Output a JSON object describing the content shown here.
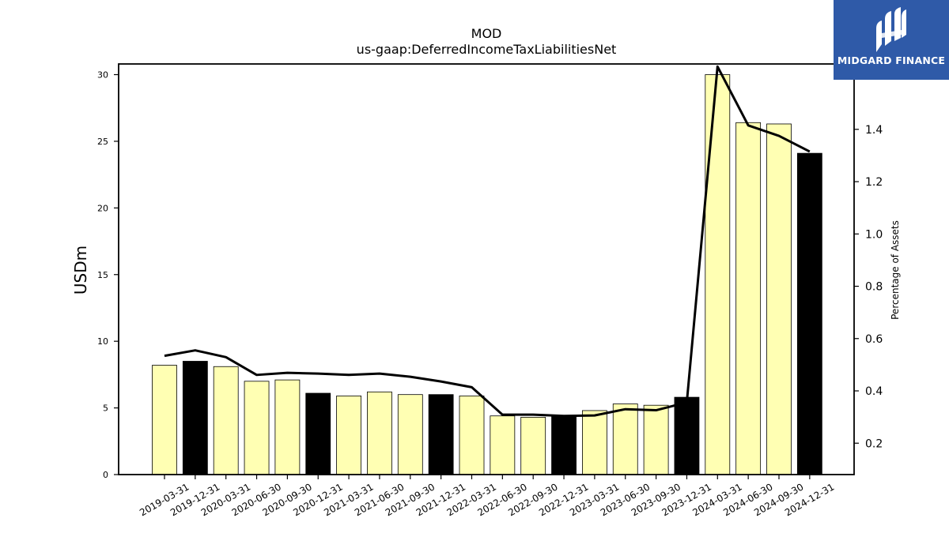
{
  "chart_data": {
    "type": "bar",
    "title": "MOD",
    "subtitle": "us-gaap:DeferredIncomeTaxLiabilitiesNet",
    "ylabel": "USDm",
    "y2label": "Percentage of Assets",
    "ylim": [
      0,
      30.8
    ],
    "y2lim": [
      0.08,
      1.65
    ],
    "yticks": [
      0,
      5,
      10,
      15,
      20,
      25,
      30
    ],
    "y2ticks": [
      0.2,
      0.4,
      0.6,
      0.8,
      1.0,
      1.2,
      1.4
    ],
    "categories": [
      "2019-03-31",
      "2019-12-31",
      "2020-03-31",
      "2020-06-30",
      "2020-09-30",
      "2020-12-31",
      "2021-03-31",
      "2021-06-30",
      "2021-09-30",
      "2021-12-31",
      "2022-03-31",
      "2022-06-30",
      "2022-09-30",
      "2022-12-31",
      "2023-03-31",
      "2023-06-30",
      "2023-09-30",
      "2023-12-31",
      "2024-03-31",
      "2024-06-30",
      "2024-09-30",
      "2024-12-31"
    ],
    "series": [
      {
        "type": "bar",
        "values": [
          8.2,
          8.5,
          8.1,
          7.0,
          7.1,
          6.1,
          5.9,
          6.2,
          6.0,
          6.0,
          5.9,
          4.4,
          4.3,
          4.4,
          4.8,
          5.3,
          5.2,
          5.8,
          30.0,
          26.4,
          26.3,
          24.1
        ],
        "highlight": [
          false,
          true,
          false,
          false,
          false,
          true,
          false,
          false,
          false,
          true,
          false,
          false,
          false,
          true,
          false,
          false,
          false,
          true,
          false,
          false,
          false,
          true
        ],
        "colors": {
          "normal": "#ffffb3",
          "highlight": "#000000"
        }
      },
      {
        "type": "line",
        "axis": "right",
        "values": [
          0.534,
          0.555,
          0.529,
          0.461,
          0.469,
          0.466,
          0.461,
          0.466,
          0.454,
          0.436,
          0.414,
          0.309,
          0.309,
          0.304,
          0.306,
          0.33,
          0.326,
          0.356,
          1.64,
          1.415,
          1.375,
          1.315
        ],
        "color": "#000000"
      }
    ],
    "grid": false,
    "legend": "none"
  },
  "logo": {
    "text": "MIDGARD FINANCE",
    "background": "#2f5aa8"
  }
}
